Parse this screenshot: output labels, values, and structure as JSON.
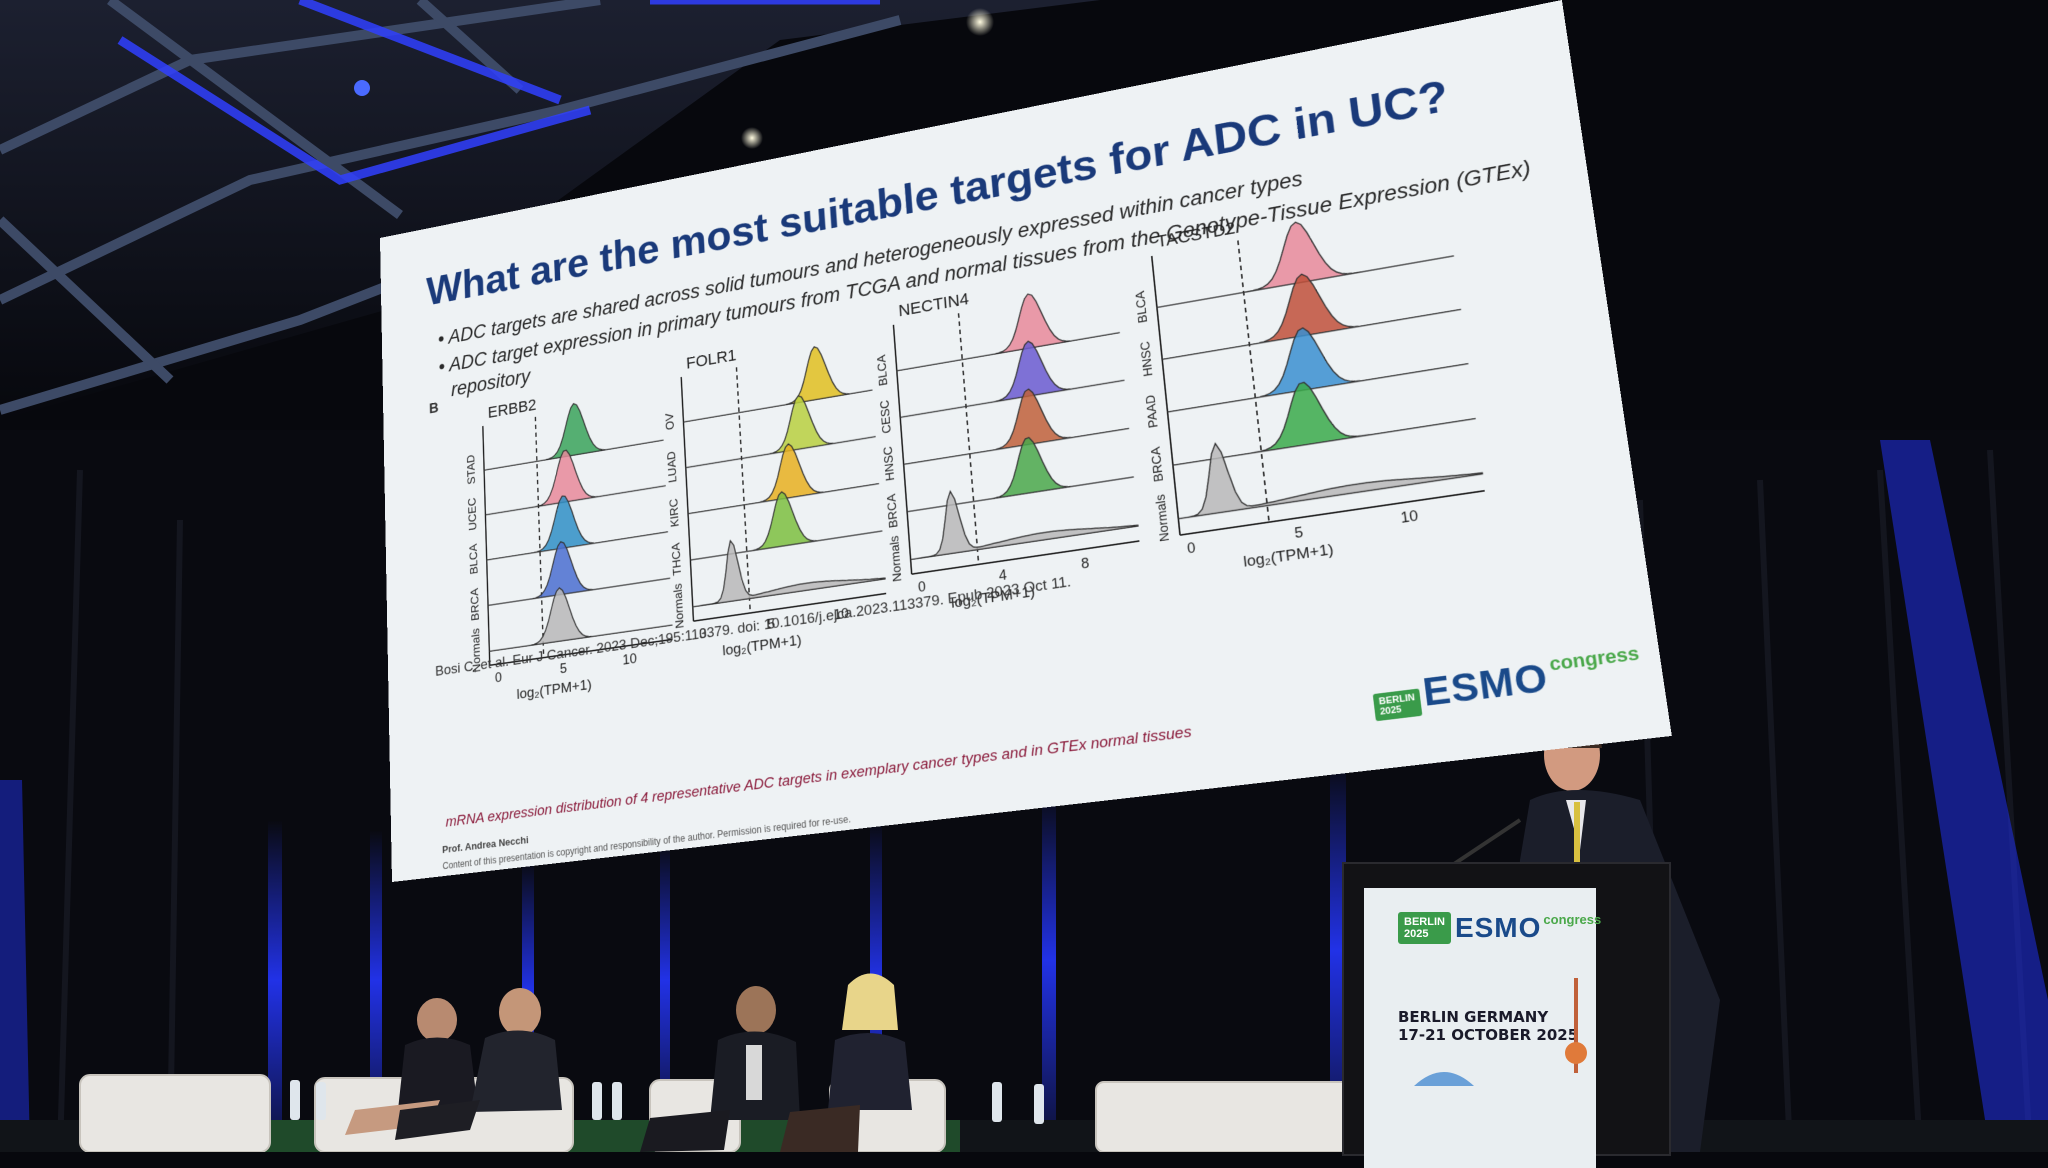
{
  "slide": {
    "title": "What are the most suitable targets for ADC in UC?",
    "bullets": [
      "ADC targets are shared across solid tumours and heterogeneously expressed within cancer types",
      "ADC target expression in primary tumours from TCGA and normal tissues from the Genotype-Tissue Expression (GTEx)",
      "repository"
    ],
    "panel_label": "B",
    "caption": "mRNA expression distribution of 4 representative ADC targets in exemplary cancer types and in GTEx normal tissues",
    "citation": "Bosi C, et al. Eur J Cancer. 2023 Dec;195:113379. doi: 10.1016/j.ejca.2023.113379. Epub 2023 Oct 11.",
    "author": "Prof. Andrea Necchi",
    "rights": "Content of this presentation is copyright and responsibility of the author. Permission is required for re-use.",
    "xlabel": "log₂(TPM+1)",
    "panels": [
      {
        "gene": "ERBB2",
        "rows": [
          "STAD",
          "UCEC",
          "BLCA",
          "BRCA",
          "Normals"
        ],
        "ticks": [
          "0",
          "5",
          "10"
        ],
        "colors": [
          "#3aa35a",
          "#e88a9a",
          "#2f8fc6",
          "#4a6fd0",
          "#b8b8b8"
        ]
      },
      {
        "gene": "FOLR1",
        "rows": [
          "OV",
          "LUAD",
          "KIRC",
          "THCA",
          "Normals"
        ],
        "ticks": [
          "0",
          "5",
          "10"
        ],
        "colors": [
          "#e0c020",
          "#b8d040",
          "#e8b020",
          "#7cc040",
          "#b8b8b8"
        ]
      },
      {
        "gene": "NECTIN4",
        "rows": [
          "BLCA",
          "CESC",
          "HNSC",
          "BRCA",
          "Normals"
        ],
        "ticks": [
          "0",
          "4",
          "8"
        ],
        "colors": [
          "#e88a9a",
          "#6a5ad0",
          "#c0603a",
          "#4aa84a",
          "#b8b8b8"
        ]
      },
      {
        "gene": "TACSTD2",
        "rows": [
          "BLCA",
          "HNSC",
          "PAAD",
          "BRCA",
          "Normals"
        ],
        "ticks": [
          "0",
          "5",
          "10"
        ],
        "colors": [
          "#e88a9a",
          "#c0503a",
          "#3a8fd0",
          "#3aaa4a",
          "#b8b8b8"
        ]
      }
    ]
  },
  "slide_logo": {
    "badge_line1": "BERLIN",
    "badge_line2": "2025",
    "word": "ESMO",
    "congress": "congress"
  },
  "podium": {
    "logo": {
      "badge_line1": "BERLIN",
      "badge_line2": "2025",
      "word": "ESMO",
      "congress": "congress"
    },
    "city": "BERLIN GERMANY",
    "dates": "17-21 OCTOBER 2025"
  },
  "colors": {
    "screen": "#eef2f4",
    "title": "#1a3a7a",
    "stage_light": "#2a3cff",
    "esmo_green": "#3a9b4a"
  }
}
